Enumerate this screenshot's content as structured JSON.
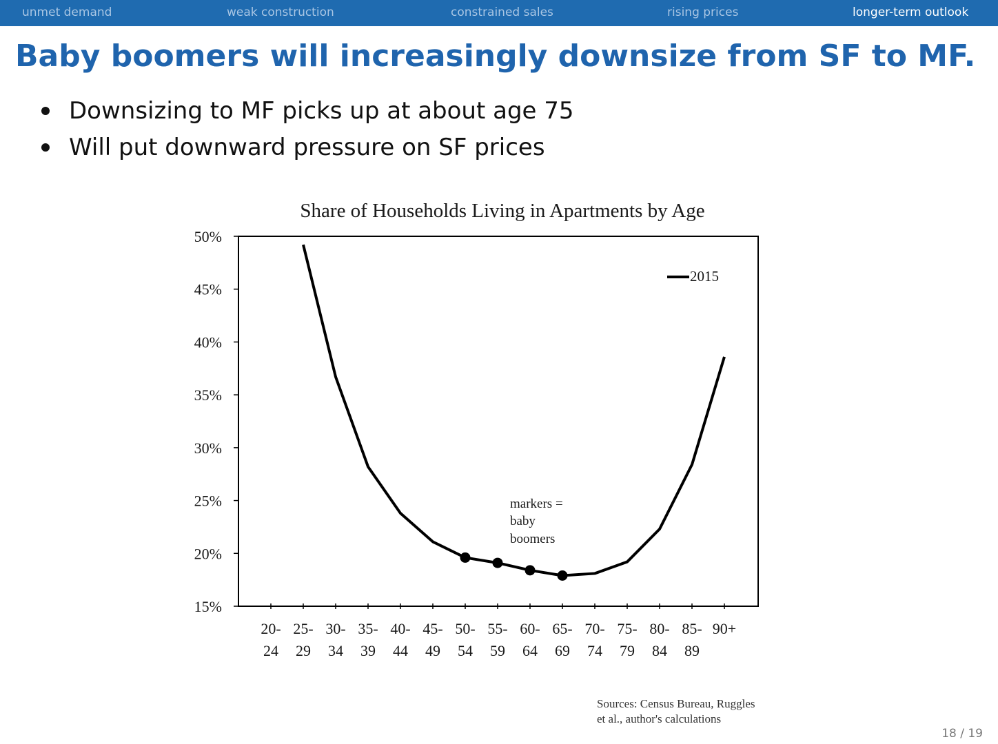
{
  "nav": {
    "items": [
      {
        "label": "unmet demand"
      },
      {
        "label": "weak construction"
      },
      {
        "label": "constrained sales"
      },
      {
        "label": "rising prices"
      },
      {
        "label": "longer-term outlook"
      }
    ],
    "active_index": 4
  },
  "slide": {
    "title": "Baby boomers will increasingly downsize from SF to MF.",
    "bullets": [
      "Downsizing to MF picks up at about age 75",
      "Will put downward pressure on SF prices"
    ],
    "source_line1": "Sources: Census Bureau, Ruggles",
    "source_line2": "et al., author's calculations",
    "page": "18 / 19"
  },
  "chart_data": {
    "type": "line",
    "title": "Share of Households Living in Apartments by Age",
    "categories": [
      [
        "20-",
        "24"
      ],
      [
        "25-",
        "29"
      ],
      [
        "30-",
        "34"
      ],
      [
        "35-",
        "39"
      ],
      [
        "40-",
        "44"
      ],
      [
        "45-",
        "49"
      ],
      [
        "50-",
        "54"
      ],
      [
        "55-",
        "59"
      ],
      [
        "60-",
        "64"
      ],
      [
        "65-",
        "69"
      ],
      [
        "70-",
        "74"
      ],
      [
        "75-",
        "79"
      ],
      [
        "80-",
        "84"
      ],
      [
        "85-",
        "89"
      ],
      [
        "90+",
        ""
      ]
    ],
    "series": [
      {
        "name": "2015",
        "values": [
          null,
          49.2,
          36.7,
          28.2,
          23.8,
          21.1,
          19.6,
          19.1,
          18.4,
          17.9,
          18.1,
          19.2,
          22.3,
          28.4,
          38.6
        ],
        "marker_indices": [
          6,
          7,
          8,
          9
        ]
      }
    ],
    "yticks": [
      15,
      20,
      25,
      30,
      35,
      40,
      45,
      50
    ],
    "ytick_labels": [
      "15%",
      "20%",
      "25%",
      "30%",
      "35%",
      "40%",
      "45%",
      "50%"
    ],
    "ylim": [
      15,
      50
    ],
    "annotation": [
      "markers =",
      "baby",
      "boomers"
    ],
    "legend": "top-right",
    "grid": false,
    "xlabel": "",
    "ylabel": ""
  }
}
